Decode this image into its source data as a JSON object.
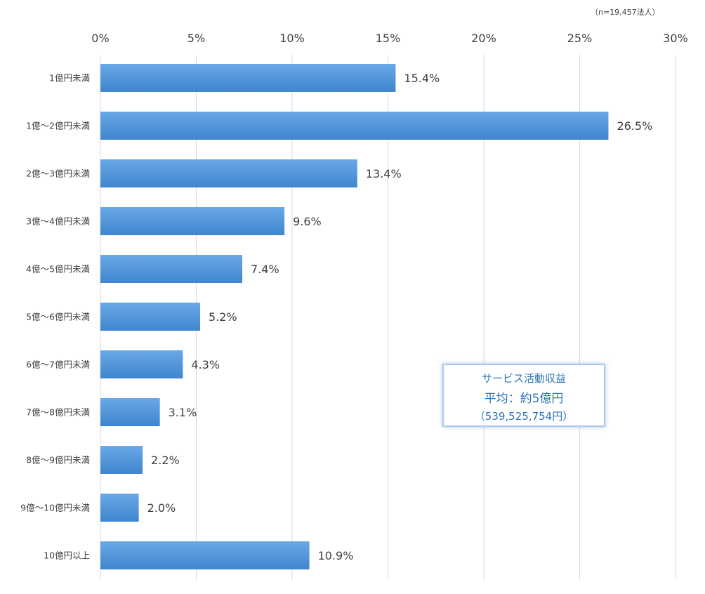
{
  "note": "（n=19,457法人）",
  "callout": {
    "line1": "サービス活動収益",
    "line2": "平均：約5億円",
    "line3": "（539,525,754円）"
  },
  "chart_data": {
    "type": "bar",
    "orientation": "horizontal",
    "categories": [
      "1億円未満",
      "1億～2億円未満",
      "2億～3億円未満",
      "3億～4億円未満",
      "4億～5億円未満",
      "5億～6億円未満",
      "6億～7億円未満",
      "7億～8億円未満",
      "8億～9億円未満",
      "9億～10億円未満",
      "10億円以上"
    ],
    "values": [
      15.4,
      26.5,
      13.4,
      9.6,
      7.4,
      5.2,
      4.3,
      3.1,
      2.2,
      2.0,
      10.9
    ],
    "value_labels": [
      "15.4%",
      "26.5%",
      "13.4%",
      "9.6%",
      "7.4%",
      "5.2%",
      "4.3%",
      "3.1%",
      "2.2%",
      "2.0%",
      "10.9%"
    ],
    "x_ticks": [
      "0%",
      "5%",
      "10%",
      "15%",
      "20%",
      "25%",
      "30%"
    ],
    "xlim": [
      0,
      30
    ],
    "axis_position": "top",
    "grid": true,
    "bar_color": "#4a8fd6"
  }
}
